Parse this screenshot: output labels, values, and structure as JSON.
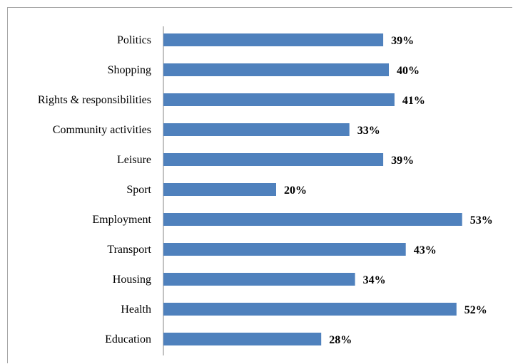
{
  "chart_data": {
    "type": "bar",
    "orientation": "horizontal",
    "categories": [
      "Politics",
      "Shopping",
      "Rights & responsibilities",
      "Community activities",
      "Leisure",
      "Sport",
      "Employment",
      "Transport",
      "Housing",
      "Health",
      "Education"
    ],
    "values": [
      39,
      40,
      41,
      33,
      39,
      20,
      53,
      43,
      34,
      52,
      28
    ],
    "value_labels": [
      "39%",
      "40%",
      "41%",
      "33%",
      "39%",
      "20%",
      "53%",
      "43%",
      "34%",
      "52%",
      "28%"
    ],
    "unit": "%",
    "xlim": [
      0,
      60
    ],
    "grid": false,
    "legend": "none",
    "bar_color": "#4f81bd",
    "axis_color": "#868686"
  }
}
